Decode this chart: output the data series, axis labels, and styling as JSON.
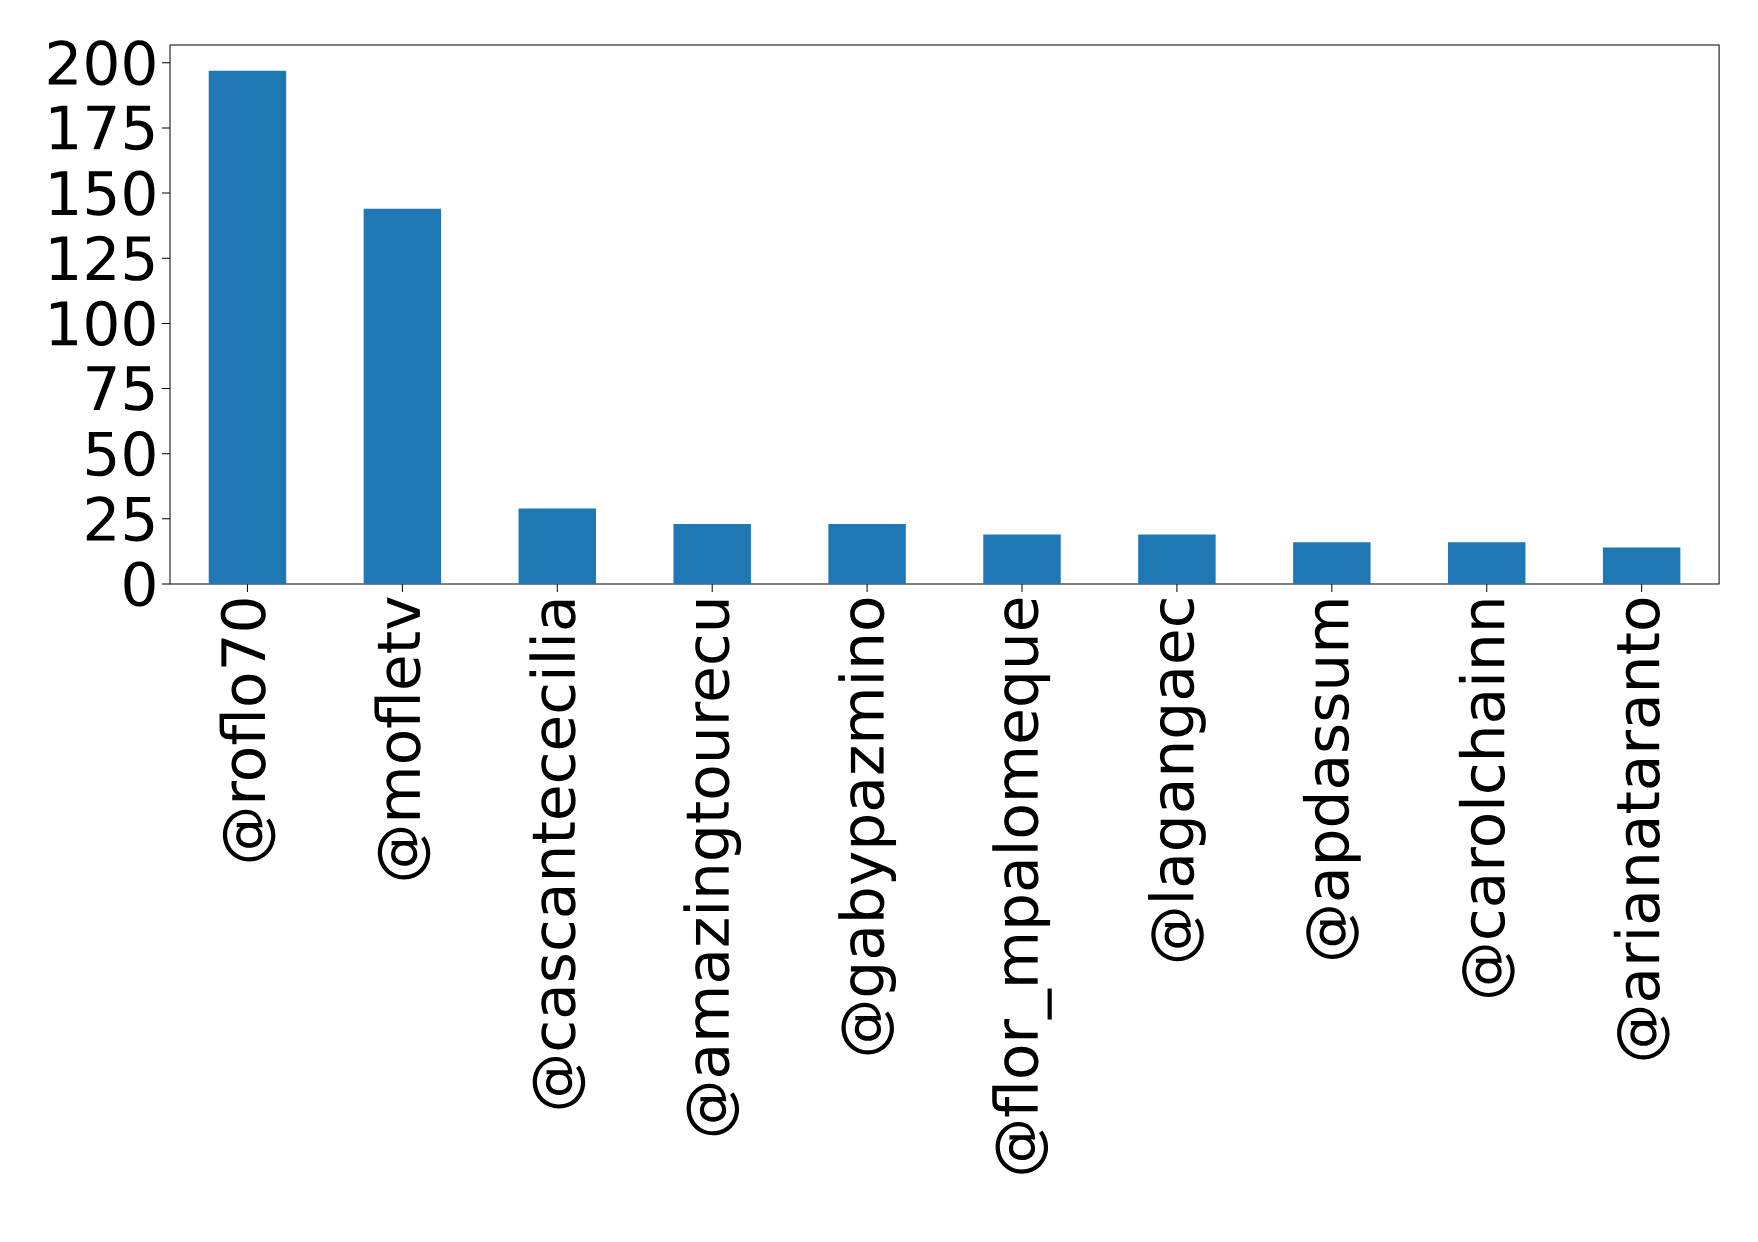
{
  "chart_data": {
    "type": "bar",
    "categories": [
      "@roflo70",
      "@mofletv",
      "@cascantececilia",
      "@amazingtourecu",
      "@gabypazmino",
      "@flor_mpalomeque",
      "@lagangaec",
      "@apdassum",
      "@carolchainn",
      "@arianataranto"
    ],
    "values": [
      197,
      144,
      29,
      23,
      23,
      19,
      19,
      16,
      16,
      14
    ],
    "color": "#1f77b4",
    "ylim": [
      0,
      206.85
    ],
    "yticks": [
      0,
      25,
      50,
      75,
      100,
      125,
      150,
      175,
      200
    ],
    "grid": false
  }
}
